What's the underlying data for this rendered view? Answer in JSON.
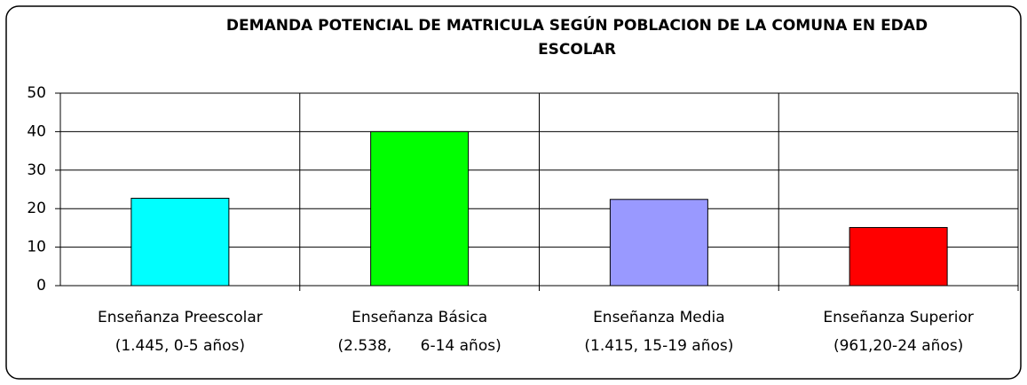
{
  "chart_data": {
    "type": "bar",
    "title": "DEMANDA POTENCIAL DE MATRICULA SEGÚN POBLACION DE LA COMUNA EN EDAD ESCOLAR",
    "categories": [
      [
        "Enseñanza Preescolar",
        "(1.445, 0-5 años)"
      ],
      [
        "Enseñanza Básica",
        "(2.538,      6-14 años)"
      ],
      [
        "Enseñanza Media",
        "(1.415, 15-19 años)"
      ],
      [
        "Enseñanza Superior",
        "(961,20-24 años)"
      ]
    ],
    "values": [
      22.7,
      40,
      22.4,
      15.1
    ],
    "colors": [
      "#00ffff",
      "#00ff00",
      "#9999ff",
      "#ff0000"
    ],
    "ylim": [
      0,
      50
    ],
    "yticks": [
      0,
      10,
      20,
      30,
      40,
      50
    ],
    "grid": true
  }
}
